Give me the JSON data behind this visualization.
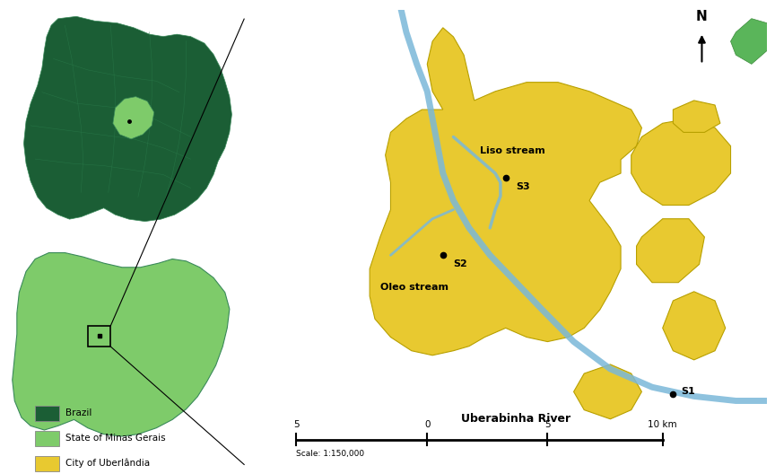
{
  "bg_color": "#eef2d8",
  "map_bg": "#eef2d8",
  "brazil_dark": "#1b5e35",
  "minas_green": "#7ecb6a",
  "city_yellow": "#e8c930",
  "river_blue": "#7ab8d9",
  "nature_green": "#5ab55a",
  "legend_items": [
    {
      "label": "Brazil",
      "color": "#1b5e35"
    },
    {
      "label": "State of Minas Gerais",
      "color": "#7ecb6a"
    },
    {
      "label": "City of Uberlândia",
      "color": "#e8c930"
    }
  ],
  "scale_labels": [
    "5",
    "0",
    "5",
    "10 km"
  ],
  "scale_note": "Scale: 1:150,000",
  "river_label": "Uberabinha River"
}
